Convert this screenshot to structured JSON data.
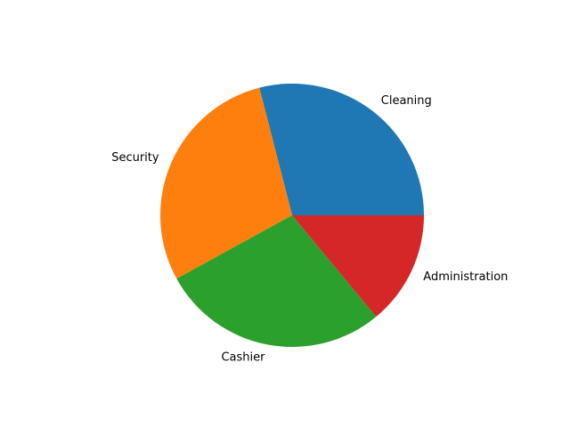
{
  "chart_data": {
    "type": "pie",
    "title": "",
    "categories": [
      "Cleaning",
      "Security",
      "Cashier",
      "Administration"
    ],
    "values": [
      29,
      29,
      28,
      14
    ],
    "colors": [
      "#1f77b4",
      "#ff7f0e",
      "#2ca02c",
      "#d62728"
    ],
    "start_angle_deg": 0,
    "direction": "counterclockwise",
    "legend": "none"
  }
}
